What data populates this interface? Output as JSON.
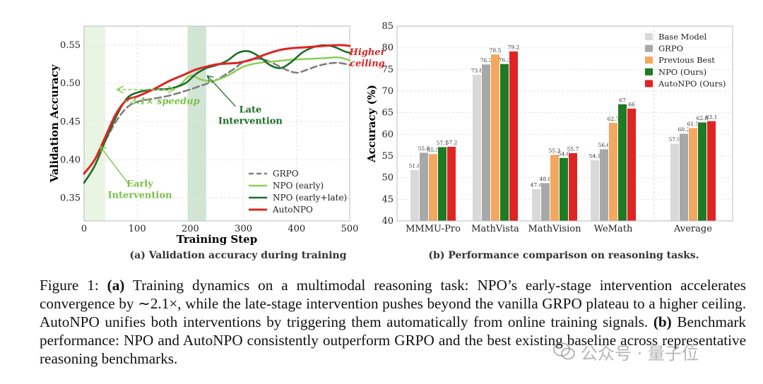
{
  "colors": {
    "grpo": "#7f7f7f",
    "npo_early": "#8fcf5a",
    "npo_early_late": "#1e6e2a",
    "autonpo": "#e02424",
    "base": "#d9d9d9",
    "grpo_bar": "#a8a8a8",
    "previous_best": "#f4a75e",
    "npo_bar": "#1e7a23",
    "autonpo_bar": "#e02424",
    "early_band": "#e8f3e0",
    "late_band": "#c9e0cc"
  },
  "chart_data": [
    {
      "type": "line",
      "xlabel": "Training Step",
      "ylabel": "Validation Accuracy",
      "subtitle": "(a) Validation accuracy during training",
      "xlim": [
        0,
        500
      ],
      "ylim": [
        0.32,
        0.575
      ],
      "xticks": [
        "0",
        "100",
        "200",
        "300",
        "400",
        "500"
      ],
      "yticks": [
        "0.35",
        "0.40",
        "0.45",
        "0.50",
        "0.55"
      ],
      "grid": true,
      "legend_position": "lower-right",
      "bands": [
        {
          "from": 0,
          "to": 40
        },
        {
          "from": 195,
          "to": 230
        }
      ],
      "annotations": {
        "speedup": "2.1× speedup",
        "speedup_prefix": "∼",
        "early": [
          "Early",
          "Intervention"
        ],
        "late": [
          "Late",
          "Intervention"
        ],
        "ceiling": [
          "Higher",
          "ceiling"
        ]
      },
      "series": [
        {
          "name": "GRPO",
          "x": [
            0,
            20,
            40,
            60,
            80,
            100,
            130,
            160,
            190,
            220,
            250,
            280,
            300,
            320,
            340,
            360,
            380,
            400,
            420,
            440,
            460,
            480,
            500
          ],
          "y": [
            0.382,
            0.4,
            0.425,
            0.45,
            0.468,
            0.476,
            0.48,
            0.484,
            0.49,
            0.497,
            0.505,
            0.518,
            0.528,
            0.532,
            0.531,
            0.525,
            0.518,
            0.514,
            0.518,
            0.523,
            0.526,
            0.527,
            0.524
          ]
        },
        {
          "name": "NPO (early)",
          "x": [
            0,
            20,
            40,
            60,
            80,
            100,
            120,
            140,
            160,
            180,
            200,
            220,
            240,
            260,
            280,
            300,
            330,
            360,
            390,
            420,
            450,
            480,
            500
          ],
          "y": [
            0.37,
            0.392,
            0.425,
            0.456,
            0.48,
            0.488,
            0.491,
            0.492,
            0.492,
            0.498,
            0.51,
            0.505,
            0.503,
            0.507,
            0.514,
            0.522,
            0.527,
            0.529,
            0.531,
            0.532,
            0.533,
            0.534,
            0.53
          ]
        },
        {
          "name": "NPO (early+late)",
          "x": [
            0,
            20,
            40,
            60,
            80,
            100,
            130,
            160,
            190,
            210,
            230,
            250,
            270,
            290,
            310,
            330,
            350,
            370,
            390,
            410,
            430,
            450,
            470,
            490,
            500
          ],
          "y": [
            0.37,
            0.392,
            0.425,
            0.456,
            0.48,
            0.488,
            0.492,
            0.493,
            0.5,
            0.512,
            0.52,
            0.524,
            0.53,
            0.54,
            0.542,
            0.535,
            0.524,
            0.52,
            0.528,
            0.54,
            0.547,
            0.55,
            0.548,
            0.542,
            0.54
          ]
        },
        {
          "name": "AutoNPO",
          "x": [
            0,
            20,
            40,
            60,
            80,
            100,
            130,
            160,
            190,
            210,
            230,
            250,
            270,
            290,
            310,
            330,
            350,
            370,
            390,
            410,
            430,
            450,
            470,
            490,
            500
          ],
          "y": [
            0.382,
            0.4,
            0.43,
            0.46,
            0.478,
            0.483,
            0.492,
            0.503,
            0.512,
            0.518,
            0.522,
            0.525,
            0.526,
            0.527,
            0.53,
            0.535,
            0.54,
            0.544,
            0.546,
            0.547,
            0.548,
            0.549,
            0.55,
            0.55,
            0.549
          ]
        }
      ]
    },
    {
      "type": "bar",
      "xlabel": "",
      "ylabel": "Accuracy (%)",
      "subtitle": "(b) Performance comparison on reasoning tasks.",
      "ylim": [
        40,
        85
      ],
      "yticks": [
        "40",
        "45",
        "50",
        "55",
        "60",
        "65",
        "70",
        "75",
        "80",
        "85"
      ],
      "grid": true,
      "legend_position": "top-right",
      "categories": [
        "MMMU-Pro",
        "MathVista",
        "MathVision",
        "WeMath",
        "Average"
      ],
      "series": [
        {
          "name": "Base Model",
          "values": [
            51.8,
            73.8,
            47.4,
            54.1,
            57.9
          ]
        },
        {
          "name": "GRPO",
          "values": [
            55.8,
            76.2,
            48.8,
            56.6,
            60.2
          ]
        },
        {
          "name": "Previous Best",
          "values": [
            55.5,
            78.5,
            55.3,
            62.7,
            61.5
          ]
        },
        {
          "name": "NPO (Ours)",
          "values": [
            57.1,
            76.3,
            54.6,
            67.0,
            62.8
          ]
        },
        {
          "name": "AutoNPO (Ours)",
          "values": [
            57.2,
            79.2,
            55.7,
            66.0,
            63.1
          ]
        }
      ]
    }
  ],
  "caption": {
    "lead": "Figure 1: ",
    "a_label": "(a)",
    "a_text": " Training dynamics on a multimodal reasoning task: NPO’s early-stage intervention accelerates convergence by ∼2.1×, while the late-stage intervention pushes beyond the vanilla GRPO plateau to a higher ceiling. AutoNPO unifies both interventions by triggering them automatically from online training signals. ",
    "b_label": "(b)",
    "b_text": " Benchmark performance: NPO and AutoNPO consistently outperform GRPO and the best existing baseline across representative reasoning benchmarks."
  },
  "watermark": "公众号 · 量子位"
}
